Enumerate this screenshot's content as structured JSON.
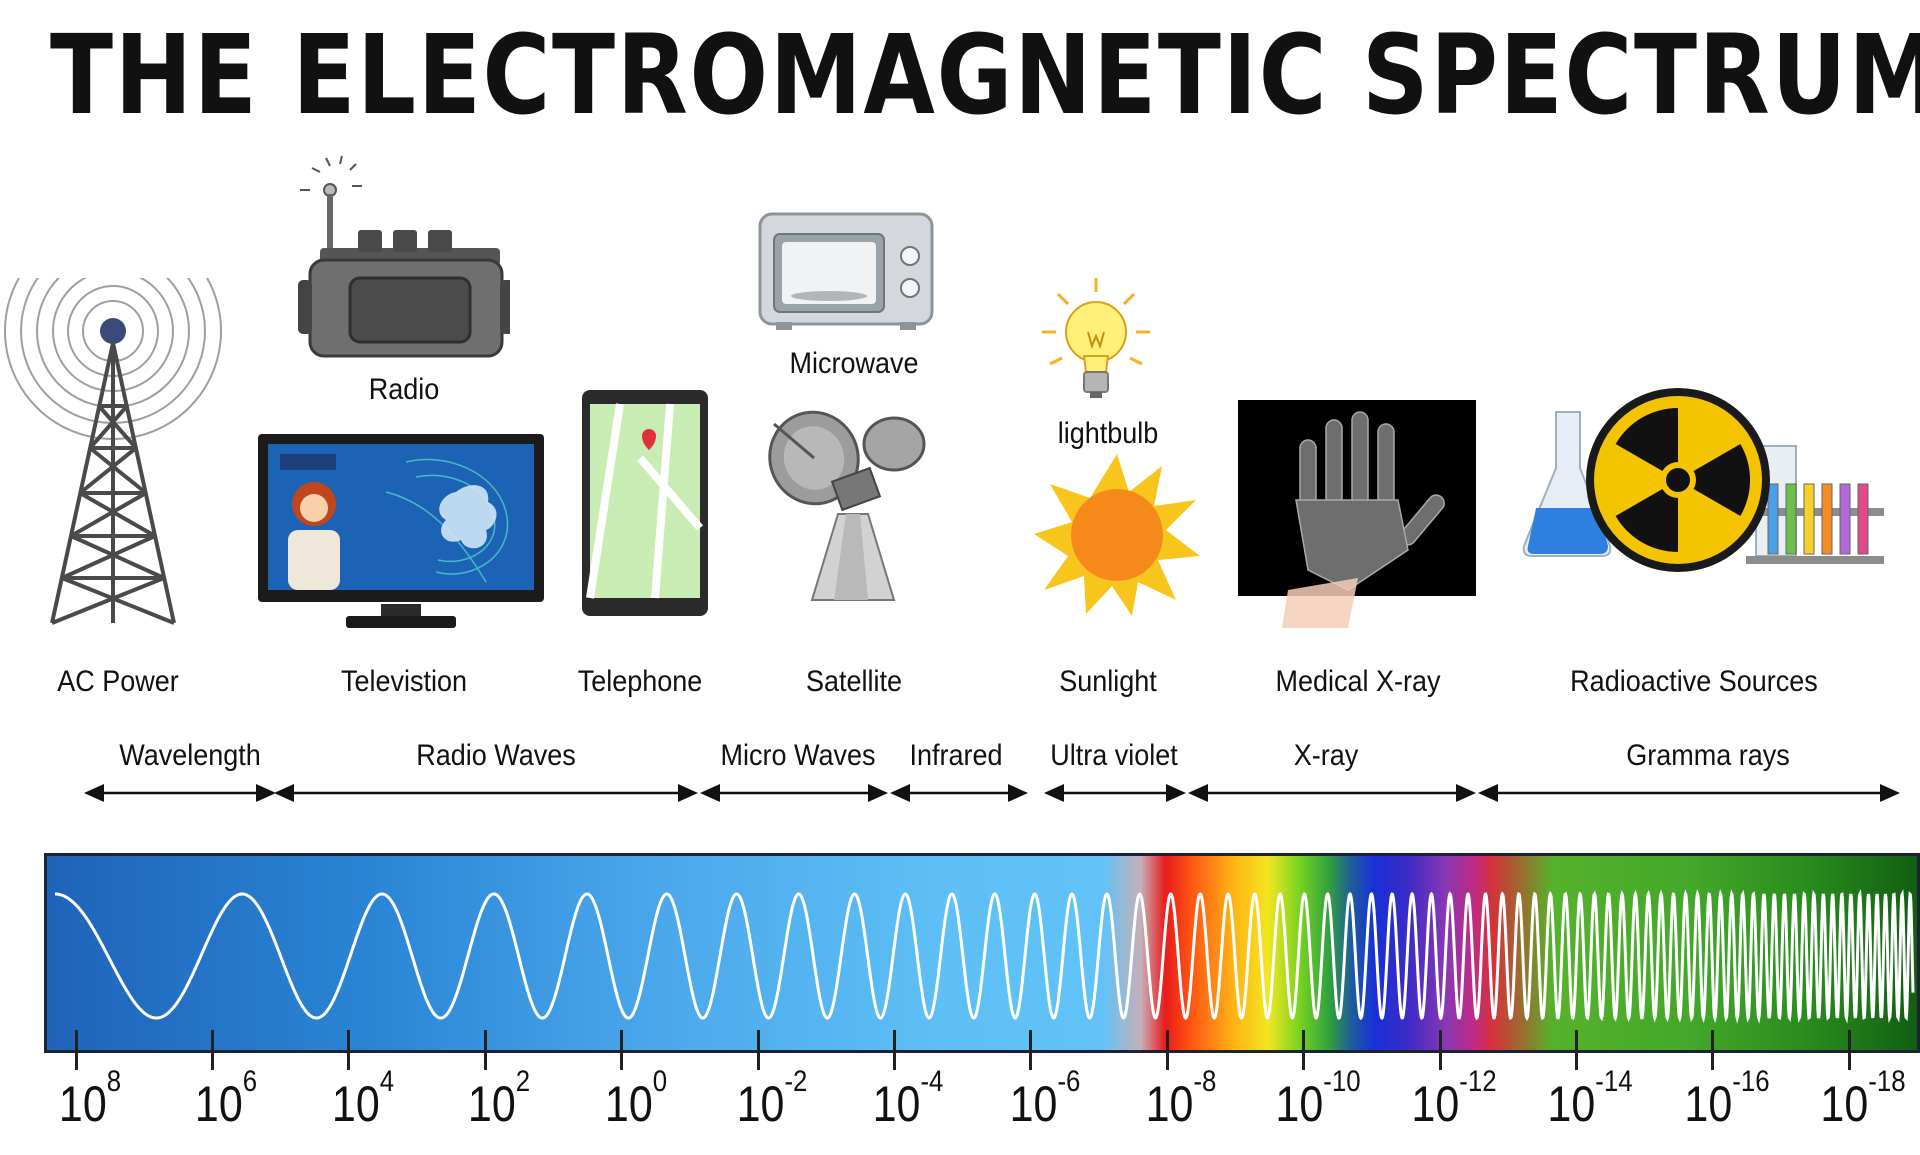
{
  "title": "THE ELECTROMAGNETIC SPECTRUM",
  "sources": {
    "ac_power": "AC Power",
    "radio": "Radio",
    "television": "Televistion",
    "telephone": "Telephone",
    "microwave": "Microwave",
    "satellite": "Satellite",
    "lightbulb": "lightbulb",
    "sunlight": "Sunlight",
    "xray": "Medical X-ray",
    "radioactive": "Radioactive Sources"
  },
  "bands": [
    {
      "label": "Wavelength"
    },
    {
      "label": "Radio Waves"
    },
    {
      "label": "Micro Waves"
    },
    {
      "label": "Infrared"
    },
    {
      "label": "Ultra violet"
    },
    {
      "label": "X-ray"
    },
    {
      "label": "Gramma rays"
    }
  ],
  "scale": {
    "base": "10",
    "exponents": [
      "8",
      "6",
      "4",
      "2",
      "0",
      "-2",
      "-4",
      "-6",
      "-8",
      "-10",
      "-12",
      "-14",
      "-16",
      "-18"
    ]
  },
  "colors": {
    "sun": "#f7a51c",
    "bulb": "#fff07a",
    "screen": "#1c63b5",
    "xray_bg": "#000000",
    "radioactive": "#f5c400",
    "beaker_liquid": "#2f7fe0"
  },
  "icons": [
    "radio-tower-icon",
    "radio-icon",
    "television-icon",
    "phone-icon",
    "microwave-icon",
    "satellite-dish-icon",
    "lightbulb-icon",
    "sun-icon",
    "xray-hand-icon",
    "radiation-icon"
  ]
}
